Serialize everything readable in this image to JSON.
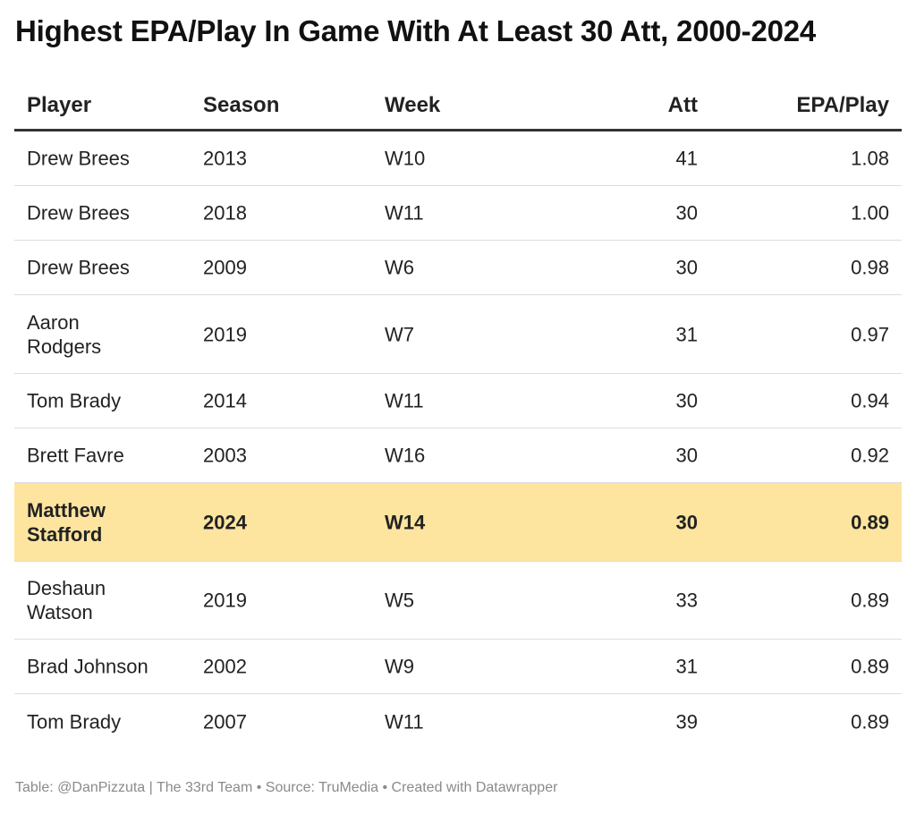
{
  "title": "Highest EPA/Play In Game With At Least 30 Att, 2000-2024",
  "colors": {
    "highlight_row": "#fde5a0",
    "header_rule": "#333333",
    "row_divider": "#dddddd",
    "footer_text": "#8a8a8a"
  },
  "chart_data": {
    "type": "table",
    "title": "Highest EPA/Play In Game With At Least 30 Att, 2000-2024",
    "columns": [
      "Player",
      "Season",
      "Week",
      "Att",
      "EPA/Play"
    ],
    "rows": [
      {
        "player": "Drew Brees",
        "season": "2013",
        "week": "W10",
        "att": "41",
        "epa": "1.08",
        "highlight": false
      },
      {
        "player": "Drew Brees",
        "season": "2018",
        "week": "W11",
        "att": "30",
        "epa": "1.00",
        "highlight": false
      },
      {
        "player": "Drew Brees",
        "season": "2009",
        "week": "W6",
        "att": "30",
        "epa": "0.98",
        "highlight": false
      },
      {
        "player": "Aaron Rodgers",
        "season": "2019",
        "week": "W7",
        "att": "31",
        "epa": "0.97",
        "highlight": false
      },
      {
        "player": "Tom Brady",
        "season": "2014",
        "week": "W11",
        "att": "30",
        "epa": "0.94",
        "highlight": false
      },
      {
        "player": "Brett Favre",
        "season": "2003",
        "week": "W16",
        "att": "30",
        "epa": "0.92",
        "highlight": false
      },
      {
        "player": "Matthew Stafford",
        "season": "2024",
        "week": "W14",
        "att": "30",
        "epa": "0.89",
        "highlight": true
      },
      {
        "player": "Deshaun Watson",
        "season": "2019",
        "week": "W5",
        "att": "33",
        "epa": "0.89",
        "highlight": false
      },
      {
        "player": "Brad Johnson",
        "season": "2002",
        "week": "W9",
        "att": "31",
        "epa": "0.89",
        "highlight": false
      },
      {
        "player": "Tom Brady",
        "season": "2007",
        "week": "W11",
        "att": "39",
        "epa": "0.89",
        "highlight": false
      }
    ]
  },
  "footer": "Table: @DanPizzuta | The 33rd Team • Source: TruMedia • Created with Datawrapper"
}
